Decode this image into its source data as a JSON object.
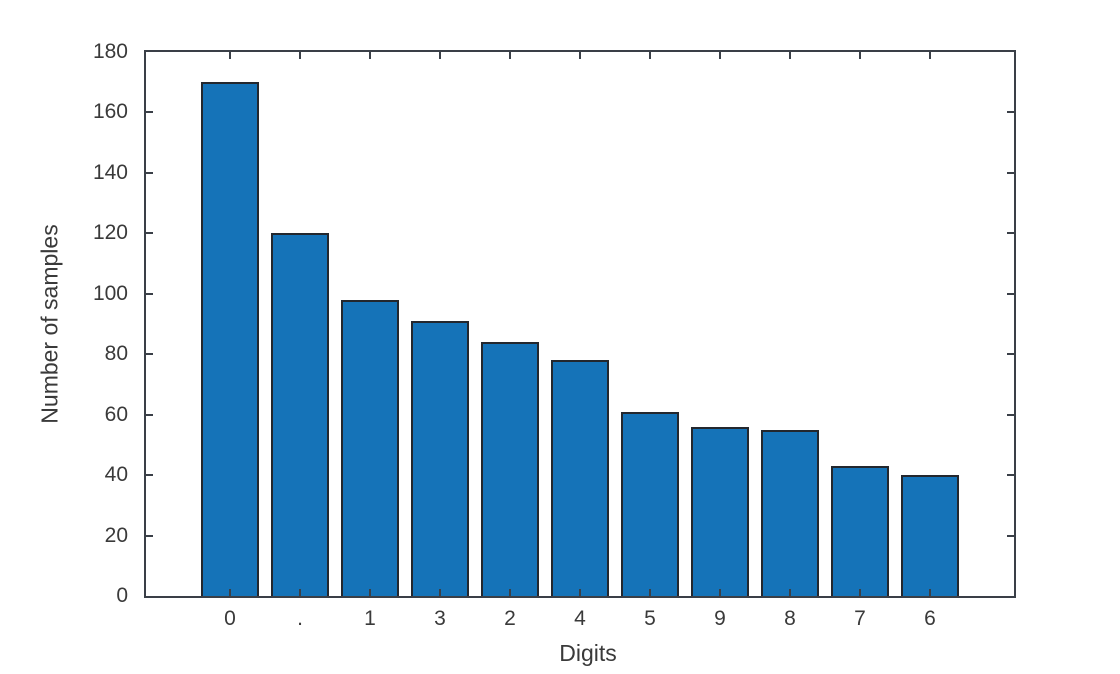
{
  "chart_data": {
    "type": "bar",
    "title": "",
    "xlabel": "Digits",
    "ylabel": "Number of samples",
    "categories": [
      "0",
      ".",
      "1",
      "3",
      "2",
      "4",
      "5",
      "9",
      "8",
      "7",
      "6"
    ],
    "values": [
      170,
      120,
      98,
      91,
      84,
      78,
      61,
      56,
      55,
      43,
      40
    ],
    "ylim": [
      0,
      180
    ],
    "ytick_step": 20,
    "yticks": [
      0,
      20,
      40,
      60,
      80,
      100,
      120,
      140,
      160,
      180
    ],
    "grid": false,
    "legend": null,
    "box": true,
    "tick_direction": "in",
    "colors": {
      "bar_fill": "#1573B8",
      "bar_edge": "#23272E",
      "axis": "#3A3F47",
      "text": "#3A3A3A",
      "background": "#FFFFFF"
    }
  }
}
